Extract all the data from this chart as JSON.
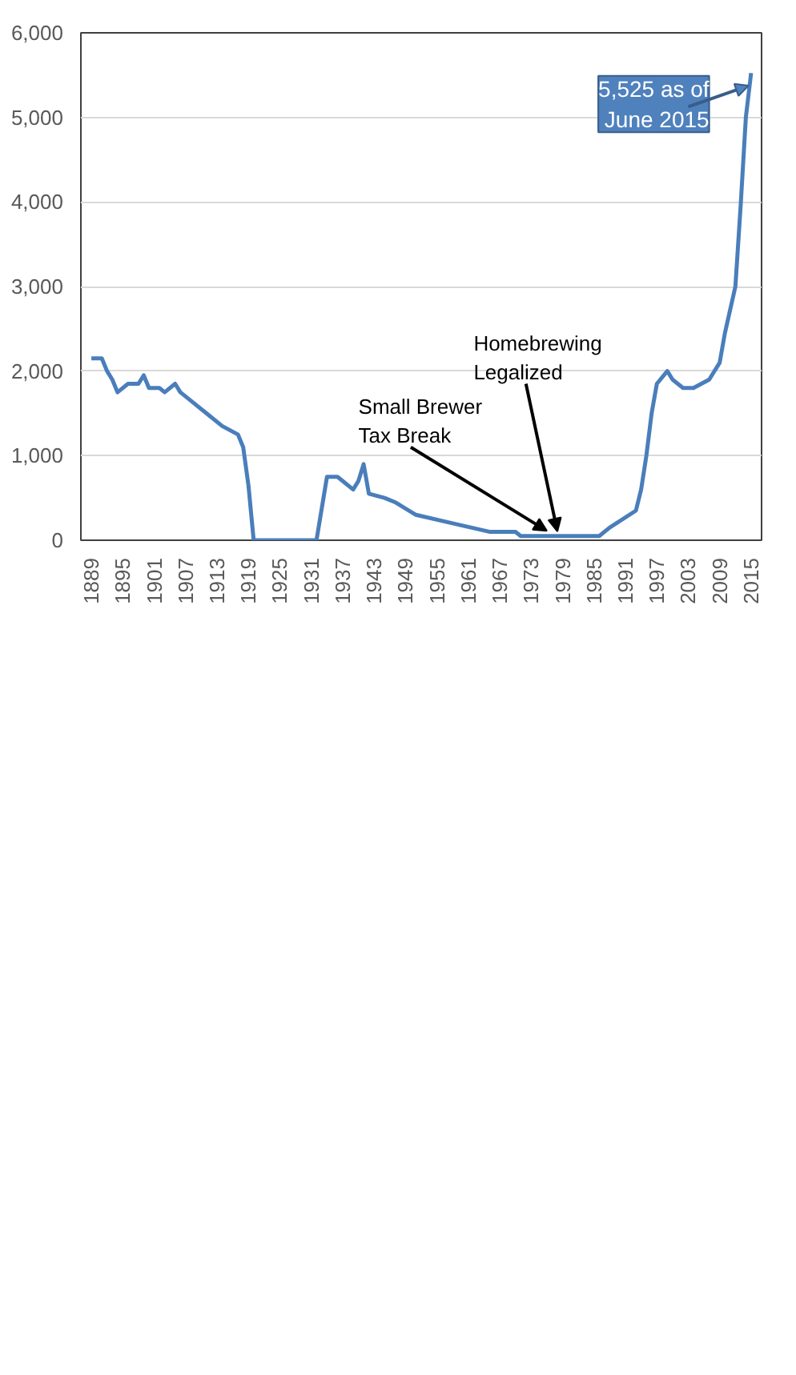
{
  "chart_data": {
    "type": "line",
    "x": [
      1889,
      1891,
      1892,
      1893,
      1894,
      1896,
      1898,
      1899,
      1900,
      1902,
      1903,
      1905,
      1906,
      1908,
      1911,
      1914,
      1917,
      1918,
      1919,
      1920,
      1932,
      1934,
      1936,
      1937,
      1939,
      1940,
      1941,
      1942,
      1945,
      1947,
      1951,
      1958,
      1965,
      1970,
      1971,
      1979,
      1986,
      1988,
      1993,
      1994,
      1995,
      1996,
      1997,
      1999,
      2000,
      2002,
      2004,
      2007,
      2009,
      2010,
      2012,
      2013,
      2014,
      2015
    ],
    "series": [
      {
        "color": "#4a7ebb",
        "values": [
          2150,
          2150,
          2000,
          1900,
          1750,
          1850,
          1850,
          1950,
          1800,
          1800,
          1750,
          1850,
          1750,
          1650,
          1500,
          1350,
          1250,
          1100,
          650,
          0,
          0,
          750,
          750,
          700,
          600,
          700,
          900,
          550,
          500,
          450,
          300,
          200,
          100,
          100,
          50,
          50,
          50,
          150,
          350,
          600,
          1000,
          1500,
          1850,
          2000,
          1900,
          1800,
          1800,
          1900,
          2100,
          2450,
          3000,
          3950,
          5000,
          5525
        ]
      }
    ],
    "xlim": [
      1887,
      2017
    ],
    "xticks": [
      1889,
      1895,
      1901,
      1907,
      1913,
      1919,
      1925,
      1931,
      1937,
      1943,
      1949,
      1955,
      1961,
      1967,
      1973,
      1979,
      1985,
      1991,
      1997,
      2003,
      2009,
      2015
    ],
    "ylim": [
      0,
      6000
    ],
    "yticks": [
      {
        "value": 0,
        "label": "0"
      },
      {
        "value": 1000,
        "label": "1,000"
      },
      {
        "value": 2000,
        "label": "2,000"
      },
      {
        "value": 3000,
        "label": "3,000"
      },
      {
        "value": 4000,
        "label": "4,000"
      },
      {
        "value": 5000,
        "label": "5,000"
      },
      {
        "value": 6000,
        "label": "6,000"
      }
    ],
    "grid": "y",
    "marker": "none",
    "line_style": "solid",
    "annotations": [
      {
        "text": "5,525 as of June 2015",
        "x": 2015,
        "y": 5525
      },
      {
        "text": "Homebrewing Legalized",
        "x": 1978,
        "y": 45
      },
      {
        "text": "Small Brewer Tax Break",
        "x": 1976,
        "y": 50
      }
    ]
  }
}
